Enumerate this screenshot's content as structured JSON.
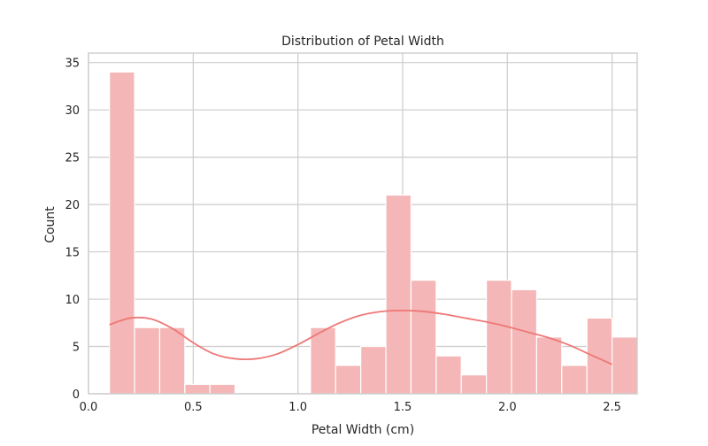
{
  "chart_data": {
    "type": "bar",
    "title": "Distribution of Petal Width",
    "xlabel": "Petal Width (cm)",
    "ylabel": "Count",
    "xlim": [
      0.0,
      2.62
    ],
    "ylim": [
      0,
      36
    ],
    "x_ticks": [
      0.0,
      0.5,
      1.0,
      1.5,
      2.0,
      2.5
    ],
    "x_tick_labels": [
      "0.0",
      "0.5",
      "1.0",
      "1.5",
      "2.0",
      "2.5"
    ],
    "y_ticks": [
      0,
      5,
      10,
      15,
      20,
      25,
      30,
      35
    ],
    "y_tick_labels": [
      "0",
      "5",
      "10",
      "15",
      "20",
      "25",
      "30",
      "35"
    ],
    "grid": true,
    "legend": "none",
    "bins": {
      "start": 0.1,
      "width": 0.12,
      "counts": [
        34,
        7,
        7,
        1,
        1,
        0,
        0,
        0,
        7,
        3,
        5,
        21,
        12,
        4,
        2,
        12,
        11,
        6,
        3,
        8,
        6
      ]
    },
    "kde": {
      "x": [
        0.1,
        0.2,
        0.3,
        0.4,
        0.5,
        0.6,
        0.7,
        0.8,
        0.9,
        1.0,
        1.1,
        1.2,
        1.3,
        1.4,
        1.5,
        1.6,
        1.7,
        1.8,
        1.9,
        2.0,
        2.1,
        2.2,
        2.3,
        2.4,
        2.5
      ],
      "y": [
        7.3,
        8.0,
        7.9,
        6.9,
        5.4,
        4.2,
        3.7,
        3.7,
        4.2,
        5.2,
        6.4,
        7.5,
        8.3,
        8.7,
        8.8,
        8.7,
        8.4,
        8.0,
        7.6,
        7.1,
        6.5,
        5.9,
        5.1,
        4.1,
        3.1
      ]
    },
    "colors": {
      "bar_fill": "#f4b6b6",
      "bar_stroke": "#ffffff",
      "kde_line": "#ef7777",
      "grid": "#cccccc",
      "axis": "#cccccc",
      "text": "#262626"
    }
  }
}
